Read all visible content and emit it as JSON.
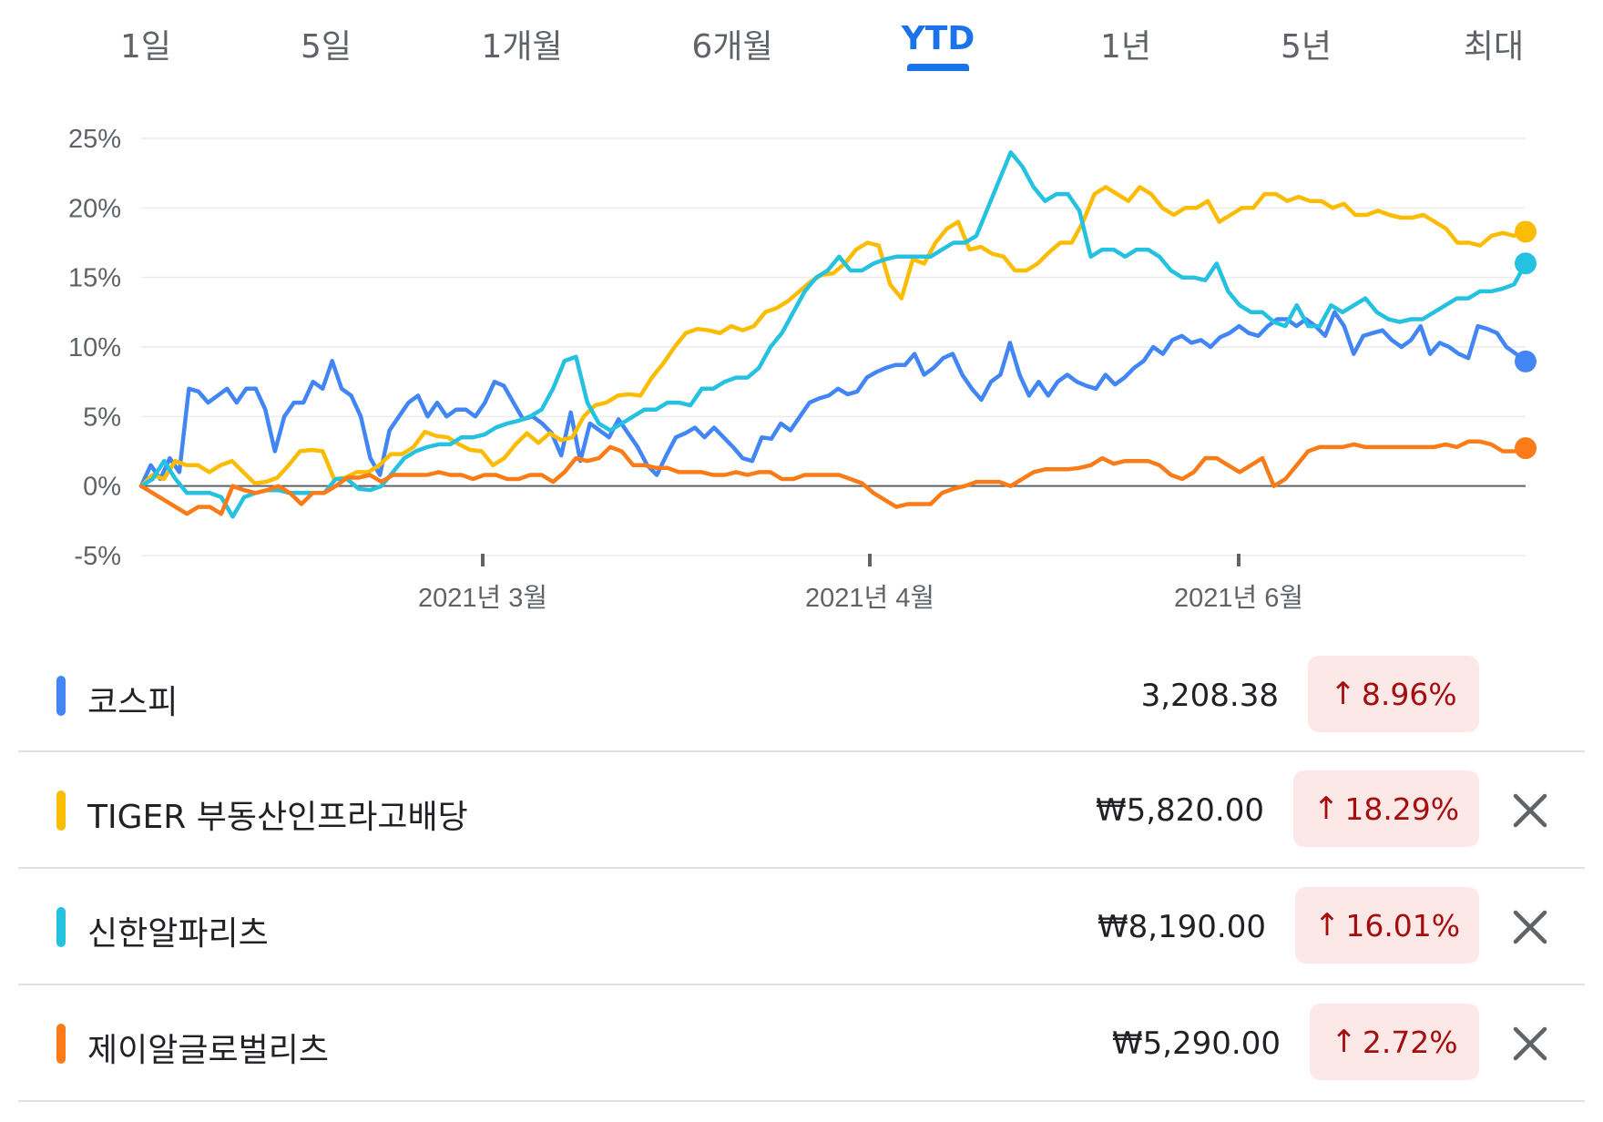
{
  "range_tabs": {
    "items": [
      "1일",
      "5일",
      "1개월",
      "6개월",
      "YTD",
      "1년",
      "5년",
      "최대"
    ],
    "active": "YTD"
  },
  "chart_data": {
    "type": "line",
    "y_ticks": [
      "25%",
      "20%",
      "15%",
      "10%",
      "5%",
      "0%",
      "-5%"
    ],
    "ylim": [
      -5,
      25
    ],
    "x_tick_labels": [
      "2021년 3월",
      "2021년 4월",
      "2021년 6월"
    ],
    "grid": true,
    "series": [
      {
        "name": "코스피",
        "color": "#4285f4",
        "values": [
          0,
          1.5,
          0.5,
          2,
          1,
          7,
          6.8,
          6,
          6.5,
          7,
          6,
          7,
          7,
          5.5,
          2.5,
          5,
          6,
          6,
          7.5,
          7,
          9,
          7,
          6.5,
          5,
          2,
          0.8,
          4,
          5,
          6,
          6.5,
          5,
          6,
          5,
          5.5,
          5.5,
          5,
          6,
          7.5,
          7.2,
          6,
          4.8,
          5,
          4.5,
          3.8,
          2.2,
          5.3,
          1.8,
          4.5,
          4,
          3.5,
          4.8,
          3.8,
          2.8,
          1.5,
          0.8,
          2.2,
          3.5,
          3.8,
          4.2,
          3.5,
          4.2,
          3.5,
          2.8,
          2,
          1.8,
          3.5,
          3.4,
          4.5,
          4,
          5,
          6,
          6.3,
          6.5,
          7,
          6.6,
          6.8,
          7.8,
          8.2,
          8.5,
          8.7,
          8.7,
          9.5,
          8,
          8.5,
          9.2,
          9.5,
          8,
          7,
          6.2,
          7.5,
          8,
          10.3,
          8,
          6.5,
          7.5,
          6.5,
          7.5,
          8,
          7.5,
          7.2,
          7,
          8,
          7.3,
          7.8,
          8.5,
          9,
          10,
          9.5,
          10.5,
          10.8,
          10.3,
          10.5,
          10,
          10.7,
          11,
          11.5,
          11,
          10.8,
          11.5,
          12,
          12,
          11.5,
          12,
          11.5,
          10.8,
          12.5,
          11.5,
          9.5,
          10.8,
          11,
          11.2,
          10.5,
          10,
          10.5,
          11.5,
          9.5,
          10.3,
          10,
          9.5,
          9.2,
          11.5,
          11.3,
          11,
          10,
          9.5,
          8.96
        ]
      },
      {
        "name": "TIGER 부동산인프라고배당",
        "color": "#fbbc04",
        "values": [
          0,
          0.8,
          0.5,
          1.8,
          1.5,
          1.5,
          1,
          1.5,
          1.8,
          1,
          0.2,
          0.3,
          0.6,
          1.5,
          2.5,
          2.6,
          2.5,
          0.5,
          0.6,
          1,
          1,
          1.5,
          2.3,
          2.3,
          2.8,
          3.9,
          3.6,
          3.5,
          3,
          2.6,
          2.5,
          1.5,
          2,
          3,
          3.8,
          3.1,
          3.8,
          3.3,
          3.5,
          5,
          5.8,
          6,
          6.5,
          6.6,
          6.5,
          7.8,
          8.8,
          10,
          11,
          11.3,
          11.2,
          11,
          11.5,
          11.2,
          11.5,
          12.5,
          12.8,
          13.3,
          14,
          14.7,
          15.2,
          15.3,
          16,
          17,
          17.5,
          17.3,
          14.5,
          13.5,
          16.3,
          16,
          17.5,
          18.5,
          19,
          17,
          17.2,
          16.7,
          16.5,
          15.5,
          15.5,
          16,
          16.8,
          17.5,
          17.5,
          19,
          21,
          21.5,
          21,
          20.5,
          21.5,
          21,
          20,
          19.5,
          20,
          20,
          20.5,
          19,
          19.5,
          20,
          20,
          21,
          21,
          20.5,
          20.8,
          20.5,
          20.5,
          20,
          20.3,
          19.5,
          19.5,
          19.8,
          19.5,
          19.3,
          19.3,
          19.5,
          19,
          18.5,
          17.5,
          17.5,
          17.3,
          18,
          18.2,
          18,
          18.29
        ]
      },
      {
        "name": "신한알파리츠",
        "color": "#24c1e0",
        "values": [
          0,
          0.5,
          1.8,
          0.5,
          -0.5,
          -0.5,
          -0.5,
          -0.8,
          -2.2,
          -0.8,
          -0.5,
          -0.3,
          -0.3,
          -0.5,
          -0.5,
          -0.5,
          -0.5,
          0.5,
          0.5,
          -0.2,
          -0.3,
          0,
          1,
          2,
          2.5,
          2.8,
          3,
          3,
          3.5,
          3.5,
          3.7,
          4.2,
          4.5,
          4.7,
          5,
          5.5,
          7,
          9,
          9.3,
          6,
          4.5,
          4,
          4.5,
          5,
          5.5,
          5.5,
          6,
          6,
          5.8,
          7,
          7,
          7.5,
          7.8,
          7.8,
          8.5,
          10,
          11,
          12.5,
          14,
          15,
          15.5,
          16.5,
          15.5,
          15.5,
          16,
          16.3,
          16.5,
          16.5,
          16.5,
          16.5,
          17,
          17.5,
          17.5,
          18,
          20,
          22,
          24,
          23,
          21.5,
          20.5,
          21,
          21,
          19.8,
          16.5,
          17,
          17,
          16.5,
          17,
          17,
          16.5,
          15.5,
          15,
          15,
          14.8,
          16,
          14,
          13,
          12.5,
          12.5,
          11.8,
          11.5,
          13,
          11.5,
          11.5,
          13,
          12.5,
          13,
          13.5,
          12.5,
          12,
          11.8,
          12,
          12,
          12.5,
          13,
          13.5,
          13.5,
          14,
          14,
          14.2,
          14.5,
          16.01
        ]
      },
      {
        "name": "제이알글로벌리츠",
        "color": "#fa7b17",
        "values": [
          0,
          -0.5,
          -1,
          -1.5,
          -2,
          -1.5,
          -1.5,
          -2,
          0,
          -0.3,
          -0.5,
          -0.3,
          0,
          -0.5,
          -1.3,
          -0.5,
          -0.5,
          0,
          0.6,
          0.6,
          0.8,
          0.3,
          0.8,
          0.8,
          0.8,
          0.8,
          1,
          0.8,
          0.8,
          0.5,
          0.8,
          0.8,
          0.5,
          0.5,
          0.8,
          0.8,
          0.3,
          1,
          2,
          1.8,
          2,
          2.8,
          2.5,
          1.5,
          1.5,
          1.3,
          1.3,
          1,
          1,
          1,
          0.8,
          0.8,
          1,
          0.8,
          1,
          1,
          0.5,
          0.5,
          0.8,
          0.8,
          0.8,
          0.8,
          0.5,
          0.2,
          -0.5,
          -1,
          -1.5,
          -1.3,
          -1.3,
          -1.3,
          -0.5,
          -0.2,
          0,
          0.3,
          0.3,
          0.3,
          0,
          0.5,
          1,
          1.2,
          1.2,
          1.2,
          1.3,
          1.5,
          2,
          1.6,
          1.8,
          1.8,
          1.8,
          1.5,
          0.8,
          0.5,
          1,
          2,
          2,
          1.5,
          1,
          1.5,
          2,
          0,
          0.5,
          1.5,
          2.5,
          2.8,
          2.8,
          2.8,
          3,
          2.8,
          2.8,
          2.8,
          2.8,
          2.8,
          2.8,
          2.8,
          3,
          2.8,
          3.2,
          3.2,
          3,
          2.5,
          2.5,
          2.72
        ]
      }
    ]
  },
  "holdings": [
    {
      "name": "코스피",
      "price": "3,208.38",
      "change": "8.96%",
      "color": "#4285f4",
      "removable": false
    },
    {
      "name": "TIGER 부동산인프라고배당",
      "price": "₩5,820.00",
      "change": "18.29%",
      "color": "#fbbc04",
      "removable": true
    },
    {
      "name": "신한알파리츠",
      "price": "₩8,190.00",
      "change": "16.01%",
      "color": "#24c1e0",
      "removable": true
    },
    {
      "name": "제이알글로벌리츠",
      "price": "₩5,290.00",
      "change": "2.72%",
      "color": "#fa7b17",
      "removable": true
    }
  ],
  "change_arrow": "↑",
  "icons": {
    "remove": "close-icon"
  }
}
